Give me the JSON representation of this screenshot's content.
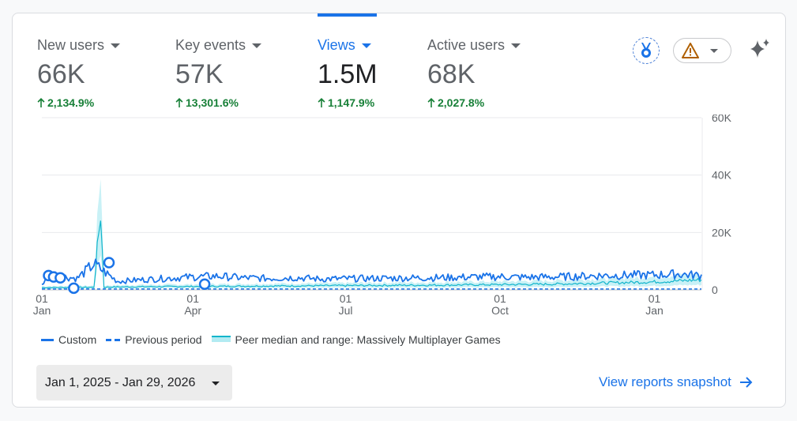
{
  "metrics": [
    {
      "label": "New users",
      "value": "66K",
      "change": "2,134.9%"
    },
    {
      "label": "Key events",
      "value": "57K",
      "change": "13,301.6%"
    },
    {
      "label": "Views",
      "value": "1.5M",
      "change": "1,147.9%",
      "active": true
    },
    {
      "label": "Active users",
      "value": "68K",
      "change": "2,027.8%"
    }
  ],
  "toolbar": {
    "medal_icon": "medal-icon",
    "alert_icon": "warning-triangle-icon",
    "insights_icon": "sparkle-icon"
  },
  "colors": {
    "accent": "#1a73e8",
    "positive": "#188038",
    "peer": "#12b5cb",
    "peer_fill": "#b2ebf2",
    "warning": "#b06000"
  },
  "chart_data": {
    "type": "line",
    "y_ticks": [
      "60K",
      "40K",
      "20K",
      "0"
    ],
    "ylim": [
      0,
      60000
    ],
    "x_ticks": [
      {
        "day": "01",
        "month": "Jan"
      },
      {
        "day": "01",
        "month": "Apr"
      },
      {
        "day": "01",
        "month": "Jul"
      },
      {
        "day": "01",
        "month": "Oct"
      },
      {
        "day": "01",
        "month": "Jan"
      }
    ],
    "x_range": [
      "2025-01-01",
      "2026-01-29"
    ],
    "series": [
      {
        "name": "Custom",
        "style": "solid",
        "x": [
          "2025-01-01",
          "2025-01-08",
          "2025-01-15",
          "2025-01-22",
          "2025-02-01",
          "2025-02-15",
          "2025-03-01",
          "2025-03-15",
          "2025-04-01",
          "2025-04-15",
          "2025-05-01",
          "2025-05-15",
          "2025-06-01",
          "2025-06-15",
          "2025-07-01",
          "2025-07-15",
          "2025-08-01",
          "2025-08-15",
          "2025-09-01",
          "2025-09-15",
          "2025-10-01",
          "2025-10-15",
          "2025-11-01",
          "2025-11-15",
          "2025-12-01",
          "2025-12-15",
          "2026-01-01",
          "2026-01-15",
          "2026-01-29"
        ],
        "values": [
          2000,
          5500,
          4500,
          4000,
          9000,
          3000,
          3500,
          4000,
          4500,
          4800,
          4200,
          4000,
          4300,
          3800,
          3900,
          4000,
          4100,
          4200,
          4300,
          4500,
          4600,
          4400,
          4500,
          4700,
          5000,
          5100,
          5200,
          5500,
          5000
        ]
      },
      {
        "name": "Previous period",
        "style": "dashed",
        "x": [
          "2025-01-01",
          "2026-01-29"
        ],
        "values": [
          300,
          300
        ]
      },
      {
        "name": "Peer median and range: Massively Multiplayer Games",
        "style": "band",
        "x": [
          "2025-01-01",
          "2025-02-01",
          "2025-02-05",
          "2025-02-07",
          "2025-02-10",
          "2025-03-01",
          "2025-05-01",
          "2025-07-01",
          "2025-09-01",
          "2025-11-01",
          "2026-01-01",
          "2026-01-29"
        ],
        "values": [
          800,
          900,
          27000,
          900,
          1000,
          1100,
          1300,
          1500,
          1700,
          2000,
          2800,
          3500
        ]
      }
    ],
    "annotations": [
      {
        "x": "2025-01-05",
        "y": 5000
      },
      {
        "x": "2025-01-08",
        "y": 4500
      },
      {
        "x": "2025-01-12",
        "y": 4200
      },
      {
        "x": "2025-01-20",
        "y": 600
      },
      {
        "x": "2025-02-10",
        "y": 9500
      },
      {
        "x": "2025-04-08",
        "y": 2000
      }
    ]
  },
  "legend": {
    "custom": "Custom",
    "previous": "Previous period",
    "peer": "Peer median and range: Massively Multiplayer Games"
  },
  "footer": {
    "date_range": "Jan 1, 2025 - Jan 29, 2026",
    "snapshot_link": "View reports snapshot"
  }
}
